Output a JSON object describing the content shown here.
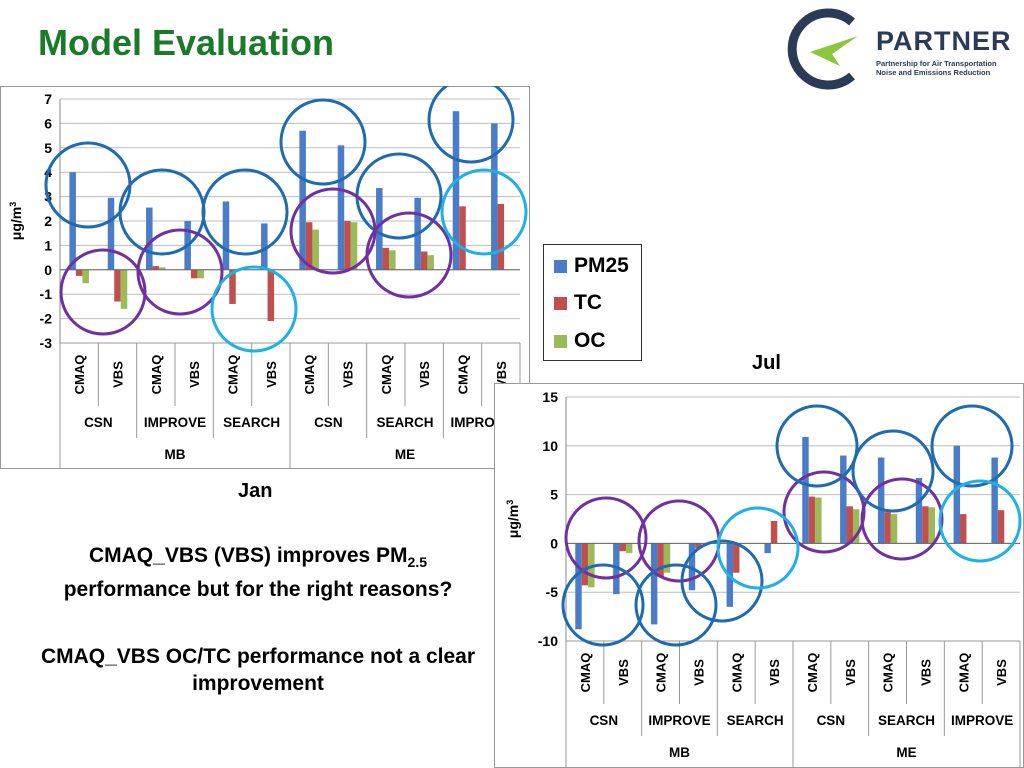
{
  "slide": {
    "title": "Model Evaluation",
    "text1_main": "CMAQ_VBS (VBS) improves PM",
    "text1_sub": "2.5",
    "text1_rest": "performance but for the right reasons?",
    "text2": "CMAQ_VBS OC/TC performance not a clear improvement"
  },
  "logo": {
    "name": "PARTNER",
    "tagline_line1": "Partnership for Air Transportation",
    "tagline_line2": "Noise and Emissions Reduction"
  },
  "legend": {
    "items": [
      {
        "label": "PM25",
        "color": "#4a7cc7"
      },
      {
        "label": "TC",
        "color": "#c0504d"
      },
      {
        "label": "OC",
        "color": "#9bbb59"
      }
    ]
  },
  "chart_data": [
    {
      "type": "bar",
      "title": "Jan",
      "ylabel": "μg/m3",
      "ylim": [
        -3,
        7
      ],
      "yticks": [
        -3,
        -2,
        -1,
        0,
        1,
        2,
        3,
        4,
        5,
        6,
        7
      ],
      "grid": true,
      "categories": [
        "CMAQ",
        "VBS",
        "CMAQ",
        "VBS",
        "CMAQ",
        "VBS",
        "CMAQ",
        "VBS",
        "CMAQ",
        "VBS",
        "CMAQ",
        "VBS"
      ],
      "networks": [
        "CSN",
        "IMPROVE",
        "SEARCH",
        "CSN",
        "SEARCH",
        "IMPROVE"
      ],
      "metrics": [
        "MB",
        "ME"
      ],
      "series": [
        {
          "name": "PM25",
          "values": [
            4.0,
            2.95,
            2.55,
            2.0,
            2.8,
            1.9,
            5.7,
            5.1,
            3.35,
            2.95,
            6.5,
            6.0
          ]
        },
        {
          "name": "TC",
          "values": [
            -0.25,
            -1.3,
            0.15,
            -0.35,
            -1.4,
            -2.1,
            1.95,
            2.0,
            0.9,
            0.75,
            2.6,
            2.7
          ]
        },
        {
          "name": "OC",
          "values": [
            -0.55,
            -1.6,
            0.1,
            -0.35,
            0,
            0,
            1.65,
            1.95,
            0.8,
            0.6,
            0,
            0
          ]
        }
      ]
    },
    {
      "type": "bar",
      "title": "Jul",
      "ylabel": "μg/m3",
      "ylim": [
        -10,
        15
      ],
      "yticks": [
        -10,
        -5,
        0,
        5,
        10,
        15
      ],
      "grid": true,
      "categories": [
        "CMAQ",
        "VBS",
        "CMAQ",
        "VBS",
        "CMAQ",
        "VBS",
        "CMAQ",
        "VBS",
        "CMAQ",
        "VBS",
        "CMAQ",
        "VBS"
      ],
      "networks": [
        "CSN",
        "IMPROVE",
        "SEARCH",
        "CSN",
        "SEARCH",
        "IMPROVE"
      ],
      "metrics": [
        "MB",
        "ME"
      ],
      "series": [
        {
          "name": "PM25",
          "values": [
            -8.8,
            -5.2,
            -8.3,
            -4.8,
            -6.5,
            -1.0,
            10.9,
            9.0,
            8.8,
            6.7,
            10.0,
            8.8
          ]
        },
        {
          "name": "TC",
          "values": [
            -4.3,
            -0.8,
            -3.4,
            -0.5,
            -3.0,
            2.3,
            4.8,
            3.8,
            3.2,
            3.8,
            3.0,
            3.4
          ]
        },
        {
          "name": "OC",
          "values": [
            -4.5,
            -1.0,
            -3.0,
            0,
            0,
            0,
            4.7,
            3.5,
            3.0,
            3.7,
            0,
            0
          ]
        }
      ]
    }
  ],
  "circles": {
    "dark_blue": "#1f6bb0",
    "purple": "#7030a0",
    "cyan": "#1eb0e6"
  }
}
